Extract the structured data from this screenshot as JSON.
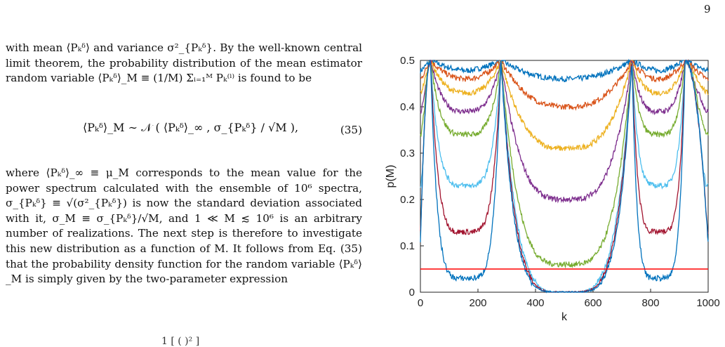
{
  "page_number": "9",
  "paragraph1": "with mean ⟨Pₖᵟ⟩ and variance σ²_{Pₖᵟ}. By the well-known central limit theorem, the probability distribution of the mean estimator random variable ⟨Pₖᵟ⟩_M ≡ (1/M) Σᵢ₌₁ᴹ Pₖ⁽ⁱ⁾ is found to be",
  "equation_35": "⟨Pₖᵟ⟩_M ∼ 𝒩 ( ⟨Pₖᵟ⟩_∞ , σ_{Pₖᵟ} / √M ),",
  "equation_35_number": "(35)",
  "paragraph2": "where ⟨Pₖᵟ⟩_∞ ≡ μ_M corresponds to the mean value for the power spectrum calculated with the ensemble of 10⁶ spectra, σ_{Pₖᵟ} ≡ √(σ²_{Pₖᵟ}) is now the standard deviation associated with it, σ_M ≡ σ_{Pₖᵟ}/√M, and 1 ≪ M ≲ 10⁶ is an arbitrary number of realizations. The next step is therefore to investigate this new distribution as a function of M. It follows from Eq. (35) that the probability density function for the random variable ⟨Pₖᵟ⟩_M is simply given by the two-parameter expression",
  "cut_equation_fragment": "1           [   (          )² ]",
  "chart_data": {
    "type": "line",
    "xlabel": "k",
    "ylabel": "p(M)",
    "xlim": [
      0,
      1000
    ],
    "ylim": [
      0,
      0.5
    ],
    "xticks": [
      "0",
      "200",
      "400",
      "600",
      "800",
      "1000"
    ],
    "yticks": [
      "0",
      "0.1",
      "0.2",
      "0.3",
      "0.4",
      "0.5"
    ],
    "peaks_k": [
      35,
      280,
      735,
      920
    ],
    "series": [
      {
        "color": "#0072BD",
        "trough_mid": 0.46,
        "trough_edge": 0.478
      },
      {
        "color": "#D95319",
        "trough_mid": 0.4,
        "trough_edge": 0.46
      },
      {
        "color": "#EDB120",
        "trough_mid": 0.31,
        "trough_edge": 0.43
      },
      {
        "color": "#7E2F8E",
        "trough_mid": 0.2,
        "trough_edge": 0.39
      },
      {
        "color": "#77AC30",
        "trough_mid": 0.06,
        "trough_edge": 0.34
      },
      {
        "color": "#4DBEEE",
        "trough_mid": 0.0,
        "trough_edge": 0.23
      },
      {
        "color": "#A2142F",
        "trough_mid": 0.0,
        "trough_edge": 0.13
      },
      {
        "color": "#0072BD",
        "trough_mid": 0.0,
        "trough_edge": 0.03
      }
    ],
    "threshold": {
      "y": 0.05,
      "color": "#FF0000"
    }
  }
}
